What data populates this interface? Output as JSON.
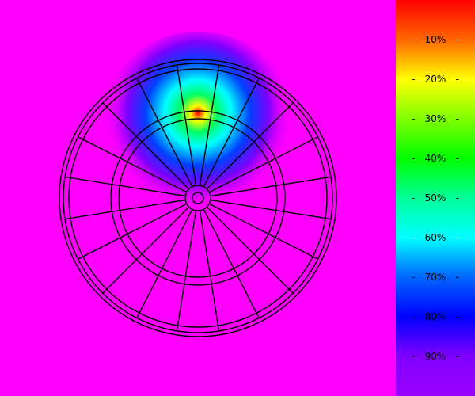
{
  "colors": {
    "background": "#ff00ff",
    "wire": "#000000",
    "hotspot_center": "#ff0000",
    "legend_top": "#ff0000",
    "legend_bottom": "#9b00ff"
  },
  "heatmap": {
    "type": "dartboard-heatmap",
    "hotspot_segment": "20 (top)",
    "hotspot_ring": "triple",
    "legend_labels": [
      "10%",
      "20%",
      "30%",
      "40%",
      "50%",
      "60%",
      "70%",
      "80%",
      "90%"
    ]
  }
}
